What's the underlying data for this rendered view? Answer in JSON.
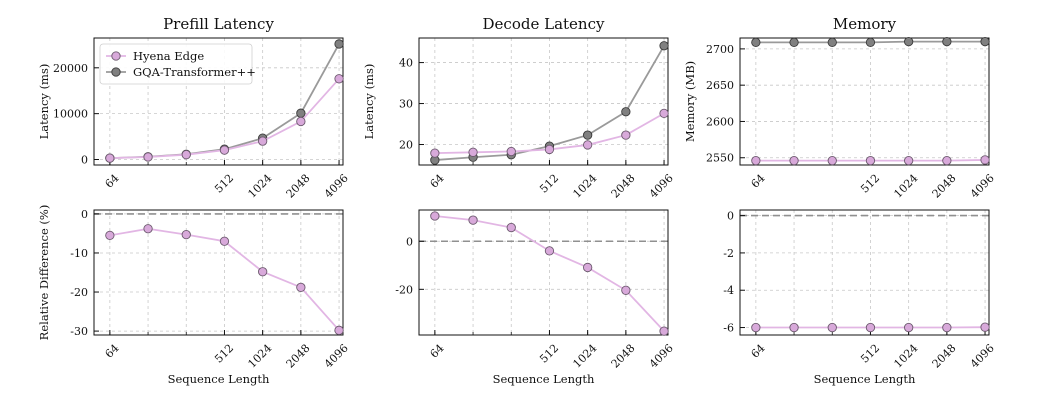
{
  "chart_data": [
    {
      "type": "line",
      "title": "Prefill Latency",
      "xlabel": "",
      "ylabel": "Latency (ms)",
      "x": [
        64,
        128,
        256,
        512,
        1024,
        2048,
        4096
      ],
      "x_tick_labels": [
        "64",
        "512",
        "1024",
        "2048",
        "4096"
      ],
      "x_ticks": [
        64,
        512,
        1024,
        2048,
        4096
      ],
      "y_ticks": [
        0,
        10000,
        20000
      ],
      "y_tick_labels": [
        "0",
        "10000",
        "20000"
      ],
      "ylim": [
        -1200,
        26500
      ],
      "series": [
        {
          "name": "Hyena Edge",
          "values": [
            300,
            550,
            1050,
            2050,
            4000,
            8300,
            17600
          ]
        },
        {
          "name": "GQA-Transformer++",
          "values": [
            300,
            600,
            1150,
            2250,
            4650,
            10100,
            25200
          ]
        }
      ],
      "legend": {
        "position": "top-left"
      },
      "grid": true
    },
    {
      "type": "line",
      "title": "Decode Latency",
      "xlabel": "",
      "ylabel": "Latency (ms)",
      "x": [
        64,
        128,
        256,
        512,
        1024,
        2048,
        4096
      ],
      "x_tick_labels": [
        "64",
        "512",
        "1024",
        "2048",
        "4096"
      ],
      "x_ticks": [
        64,
        512,
        1024,
        2048,
        4096
      ],
      "y_ticks": [
        20,
        30,
        40
      ],
      "y_tick_labels": [
        "20",
        "30",
        "40"
      ],
      "ylim": [
        15,
        46
      ],
      "series": [
        {
          "name": "Hyena Edge",
          "values": [
            17.9,
            18.1,
            18.3,
            18.8,
            19.9,
            22.3,
            27.6
          ]
        },
        {
          "name": "GQA-Transformer++",
          "values": [
            16.2,
            16.9,
            17.5,
            19.6,
            22.3,
            28.0,
            44.1
          ]
        }
      ],
      "grid": true
    },
    {
      "type": "line",
      "title": "Memory",
      "xlabel": "",
      "ylabel": "Memory (MB)",
      "x": [
        64,
        128,
        256,
        512,
        1024,
        2048,
        4096
      ],
      "x_tick_labels": [
        "64",
        "512",
        "1024",
        "2048",
        "4096"
      ],
      "x_ticks": [
        64,
        512,
        1024,
        2048,
        4096
      ],
      "y_ticks": [
        2550,
        2600,
        2650,
        2700
      ],
      "y_tick_labels": [
        "2550",
        "2600",
        "2650",
        "2700"
      ],
      "ylim": [
        2540,
        2715
      ],
      "series": [
        {
          "name": "Hyena Edge",
          "values": [
            2546,
            2546,
            2546,
            2546,
            2546,
            2546,
            2547
          ]
        },
        {
          "name": "GQA-Transformer++",
          "values": [
            2709,
            2709,
            2709,
            2709,
            2710,
            2710,
            2710
          ]
        }
      ],
      "grid": true
    },
    {
      "type": "line",
      "title": "",
      "xlabel": "Sequence Length",
      "ylabel": "Relative Difference (%)",
      "x": [
        64,
        128,
        256,
        512,
        1024,
        2048,
        4096
      ],
      "x_tick_labels": [
        "64",
        "512",
        "1024",
        "2048",
        "4096"
      ],
      "x_ticks": [
        64,
        512,
        1024,
        2048,
        4096
      ],
      "y_ticks": [
        0,
        -10,
        -20,
        -30
      ],
      "y_tick_labels": [
        "0",
        "-10",
        "-20",
        "-30"
      ],
      "ylim": [
        -31,
        1
      ],
      "reference_line": 0,
      "series": [
        {
          "name": "Hyena Edge",
          "values": [
            -5.5,
            -3.8,
            -5.3,
            -7.0,
            -14.8,
            -18.8,
            -29.8
          ]
        }
      ],
      "grid": true
    },
    {
      "type": "line",
      "title": "",
      "xlabel": "Sequence Length",
      "ylabel": "",
      "x": [
        64,
        128,
        256,
        512,
        1024,
        2048,
        4096
      ],
      "x_tick_labels": [
        "64",
        "512",
        "1024",
        "2048",
        "4096"
      ],
      "x_ticks": [
        64,
        512,
        1024,
        2048,
        4096
      ],
      "y_ticks": [
        0,
        -20
      ],
      "y_tick_labels": [
        "0",
        "-20"
      ],
      "ylim": [
        -39,
        13
      ],
      "reference_line": 0,
      "series": [
        {
          "name": "Hyena Edge",
          "values": [
            10.5,
            8.8,
            5.7,
            -4.0,
            -10.9,
            -20.4,
            -37.4
          ]
        }
      ],
      "grid": true
    },
    {
      "type": "line",
      "title": "",
      "xlabel": "Sequence Length",
      "ylabel": "",
      "x": [
        64,
        128,
        256,
        512,
        1024,
        2048,
        4096
      ],
      "x_tick_labels": [
        "64",
        "512",
        "1024",
        "2048",
        "4096"
      ],
      "x_ticks": [
        64,
        512,
        1024,
        2048,
        4096
      ],
      "y_ticks": [
        0,
        -2,
        -4,
        -6
      ],
      "y_tick_labels": [
        "0",
        "-2",
        "-4",
        "-6"
      ],
      "ylim": [
        -6.4,
        0.3
      ],
      "reference_line": 0,
      "series": [
        {
          "name": "Hyena Edge",
          "values": [
            -6.0,
            -6.0,
            -6.0,
            -6.0,
            -6.0,
            -6.0,
            -5.98
          ]
        }
      ],
      "grid": true
    }
  ],
  "styles": {
    "hyena_color": "#d8a9da",
    "hyena_line": "#e2b6e4",
    "hyena_edge": "#6c5a6e",
    "gqa_color": "#808080",
    "gqa_line": "#9a9a9a",
    "gqa_edge": "#3a3a3a",
    "grid_color": "#c8c8c8",
    "ref_line_color": "#909090"
  }
}
